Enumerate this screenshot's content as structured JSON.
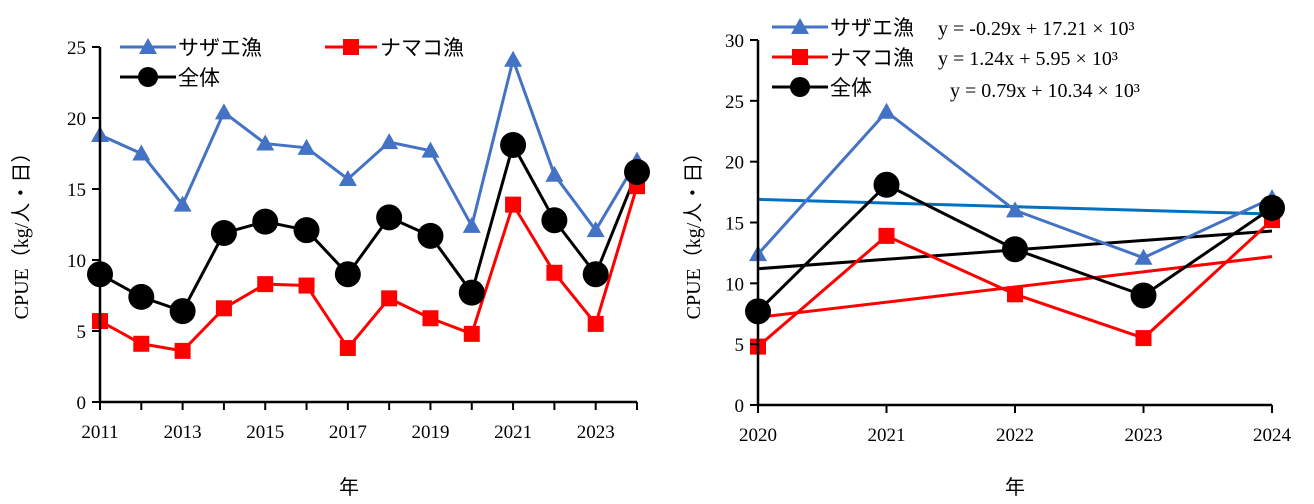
{
  "colors": {
    "sazae": "#4472C4",
    "namako": "#FF0000",
    "total": "#000000",
    "trend_sazae": "#0070C0"
  },
  "chart_data": [
    {
      "type": "line",
      "xlabel": "年",
      "ylabel": "CPUE（kg/人・日）",
      "x": [
        2011,
        2012,
        2013,
        2014,
        2015,
        2016,
        2017,
        2018,
        2019,
        2020,
        2021,
        2022,
        2023,
        2024
      ],
      "xticks": [
        "2011",
        "2013",
        "2015",
        "2017",
        "2019",
        "2021",
        "2023"
      ],
      "xlim": [
        2011,
        2024
      ],
      "ylim": [
        0,
        25
      ],
      "yticks": [
        "0",
        "5",
        "10",
        "15",
        "20",
        "25"
      ],
      "grid": false,
      "legend_position": "top-left",
      "series": [
        {
          "name": "サザエ漁",
          "marker": "triangle",
          "color": "#4472C4",
          "values": [
            18.8,
            17.5,
            13.9,
            20.4,
            18.2,
            17.9,
            15.7,
            18.3,
            17.7,
            12.4,
            24.1,
            16.0,
            12.1,
            17.0
          ]
        },
        {
          "name": "ナマコ漁",
          "marker": "square",
          "color": "#FF0000",
          "values": [
            5.7,
            4.1,
            3.6,
            6.6,
            8.3,
            8.2,
            3.8,
            7.3,
            5.9,
            4.8,
            13.9,
            9.1,
            5.5,
            15.2
          ]
        },
        {
          "name": "全体",
          "marker": "circle",
          "color": "#000000",
          "values": [
            9.0,
            7.4,
            6.4,
            11.9,
            12.7,
            12.1,
            9.0,
            13.0,
            11.7,
            7.7,
            18.1,
            12.8,
            9.0,
            16.2
          ]
        }
      ]
    },
    {
      "type": "line",
      "xlabel": "年",
      "ylabel": "CPUE（kg/人・日）",
      "x": [
        2020,
        2021,
        2022,
        2023,
        2024
      ],
      "xticks": [
        "2020",
        "2021",
        "2022",
        "2023",
        "2024"
      ],
      "xlim": [
        2020,
        2024
      ],
      "ylim": [
        0,
        30
      ],
      "yticks": [
        "0",
        "5",
        "10",
        "15",
        "20",
        "25",
        "30"
      ],
      "grid": false,
      "legend_position": "top-left",
      "series": [
        {
          "name": "サザエ漁",
          "marker": "triangle",
          "color": "#4472C4",
          "values": [
            12.4,
            24.1,
            16.0,
            12.1,
            17.0
          ],
          "trendline": {
            "equation": "y = -0.29x + 17.21 × 10³",
            "y_start": 16.9,
            "y_end": 15.7,
            "color": "#0070C0"
          }
        },
        {
          "name": "ナマコ漁",
          "marker": "square",
          "color": "#FF0000",
          "values": [
            4.8,
            13.9,
            9.1,
            5.5,
            15.2
          ],
          "trendline": {
            "equation": "y = 1.24x + 5.95 × 10³",
            "y_start": 7.2,
            "y_end": 12.2,
            "color": "#FF0000"
          }
        },
        {
          "name": "全体",
          "marker": "circle",
          "color": "#000000",
          "values": [
            7.7,
            18.1,
            12.8,
            9.0,
            16.2
          ],
          "trendline": {
            "equation": "y = 0.79x + 10.34 × 10³",
            "y_start": 11.2,
            "y_end": 14.3,
            "color": "#000000"
          }
        }
      ]
    }
  ]
}
